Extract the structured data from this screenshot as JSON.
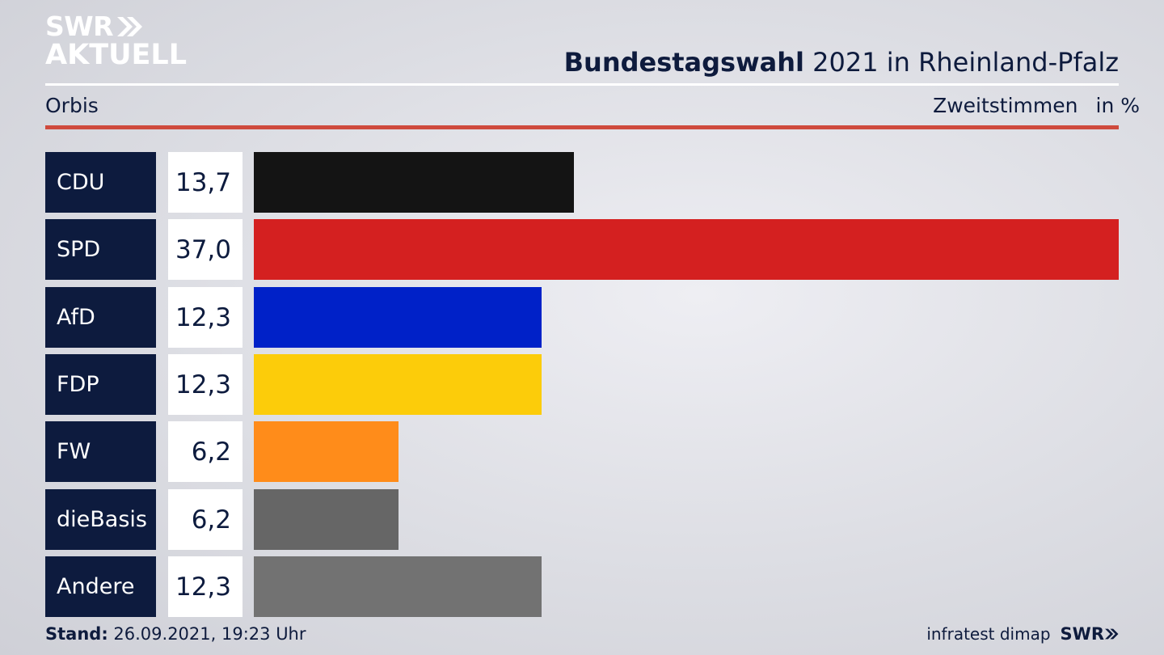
{
  "header": {
    "logo_line1": "SWR",
    "logo_line2": "AKTUELL",
    "title_bold": "Bundestagswahl",
    "title_rest": "2021 in Rheinland-Pfalz",
    "source": "Orbis",
    "metric": "Zweitstimmen",
    "unit": "in %"
  },
  "chart_data": {
    "type": "bar",
    "orientation": "horizontal",
    "title": "Bundestagswahl 2021 in Rheinland-Pfalz",
    "subtitle": "Zweitstimmen in %",
    "categories": [
      "CDU",
      "SPD",
      "AfD",
      "FDP",
      "FW",
      "dieBasis",
      "Andere"
    ],
    "values": [
      13.7,
      37.0,
      12.3,
      12.3,
      6.2,
      6.2,
      12.3
    ],
    "value_labels": [
      "13,7",
      "37,0",
      "12,3",
      "12,3",
      "6,2",
      "6,2",
      "12,3"
    ],
    "colors": [
      "#141414",
      "#d42020",
      "#0021c8",
      "#fccc0a",
      "#ff8c1a",
      "#666666",
      "#727272"
    ],
    "xlim": [
      0,
      37.0
    ]
  },
  "footer": {
    "stand_label": "Stand:",
    "stand_value": "26.09.2021, 19:23 Uhr",
    "credit": "infratest dimap",
    "brand": "SWR"
  }
}
